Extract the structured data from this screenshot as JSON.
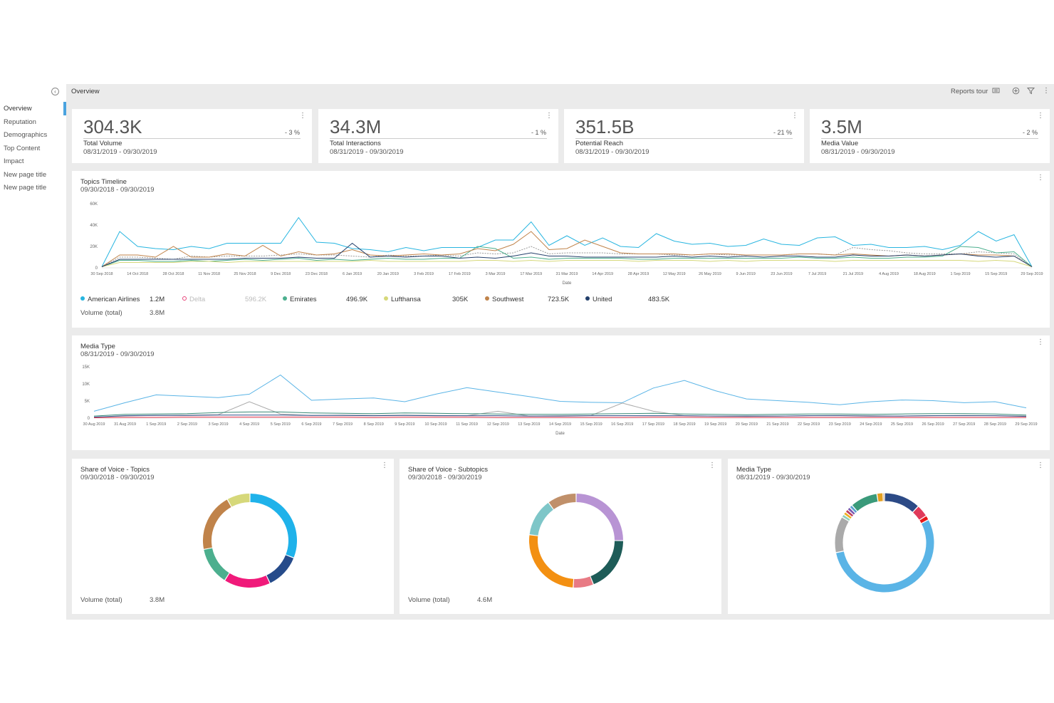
{
  "sidebar": {
    "collapse_icon": "chevron-left-circle-icon",
    "items": [
      {
        "label": "Overview",
        "active": true
      },
      {
        "label": "Reputation"
      },
      {
        "label": "Demographics"
      },
      {
        "label": "Top Content"
      },
      {
        "label": "Impact"
      },
      {
        "label": "New page title"
      },
      {
        "label": "New page title"
      }
    ]
  },
  "header": {
    "title": "Overview",
    "reports_tour": "Reports tour",
    "icons": [
      "reports-tour-icon",
      "add-circle-icon",
      "filter-icon",
      "more-vertical-icon"
    ]
  },
  "kpis": [
    {
      "value": "304.3K",
      "delta": "- 3 %",
      "label": "Total Volume",
      "date": "08/31/2019 - 09/30/2019"
    },
    {
      "value": "34.3M",
      "delta": "- 1 %",
      "label": "Total Interactions",
      "date": "08/31/2019 - 09/30/2019"
    },
    {
      "value": "351.5B",
      "delta": "- 21 %",
      "label": "Potential Reach",
      "date": "08/31/2019 - 09/30/2019"
    },
    {
      "value": "3.5M",
      "delta": "- 2 %",
      "label": "Media Value",
      "date": "08/31/2019 - 09/30/2019"
    }
  ],
  "topics_timeline": {
    "title": "Topics Timeline",
    "date": "09/30/2018 - 09/30/2019",
    "legend": [
      {
        "name": "American Airlines",
        "value": "1.2M",
        "color": "#27b5e0",
        "muted": false
      },
      {
        "name": "Delta",
        "value": "596.2K",
        "color": "#e8457a",
        "muted": true
      },
      {
        "name": "Emirates",
        "value": "496.9K",
        "color": "#4caf8e",
        "muted": false
      },
      {
        "name": "Lufthansa",
        "value": "305K",
        "color": "#d6d87a",
        "muted": false
      },
      {
        "name": "Southwest",
        "value": "723.5K",
        "color": "#c0834a",
        "muted": false
      },
      {
        "name": "United",
        "value": "483.5K",
        "color": "#233f6b",
        "muted": false
      }
    ],
    "volume_label": "Volume (total)",
    "volume_value": "3.8M"
  },
  "media_type_line": {
    "title": "Media Type",
    "date": "08/31/2019 - 09/30/2019"
  },
  "sov_topics": {
    "title": "Share of Voice - Topics",
    "date": "09/30/2018 - 09/30/2019",
    "volume_label": "Volume (total)",
    "volume_value": "3.8M"
  },
  "sov_subtopics": {
    "title": "Share of Voice - Subtopics",
    "date": "09/30/2018 - 09/30/2019",
    "volume_label": "Volume (total)",
    "volume_value": "4.6M"
  },
  "media_type_donut": {
    "title": "Media Type",
    "date": "08/31/2019 - 09/30/2019"
  },
  "chart_data": [
    {
      "type": "line",
      "ylabel": "",
      "xlabel": "Date",
      "yticks": [
        "0",
        "20K",
        "40K",
        "60K"
      ],
      "ylim": [
        0,
        60000
      ],
      "xticks": [
        "30 Sep 2018",
        "14 Oct 2018",
        "28 Oct 2018",
        "11 Nov 2018",
        "25 Nov 2018",
        "9 Dec 2018",
        "23 Dec 2018",
        "6 Jan 2019",
        "20 Jan 2019",
        "3 Feb 2019",
        "17 Feb 2019",
        "3 Mar 2019",
        "17 Mar 2019",
        "31 Mar 2019",
        "14 Apr 2019",
        "28 Apr 2019",
        "12 May 2019",
        "26 May 2019",
        "9 Jun 2019",
        "23 Jun 2019",
        "7 Jul 2019",
        "21 Jul 2019",
        "4 Aug 2019",
        "18 Aug 2019",
        "1 Sep 2019",
        "15 Sep 2019",
        "29 Sep 2019"
      ],
      "series": [
        {
          "name": "American Airlines",
          "color": "#27b5e0",
          "dashed": false,
          "values": [
            1000,
            34000,
            20000,
            18000,
            17000,
            20000,
            18000,
            23000,
            23000,
            23000,
            23000,
            47000,
            24000,
            23000,
            18000,
            17000,
            15000,
            19000,
            16000,
            19000,
            19000,
            19000,
            26000,
            26000,
            43000,
            21000,
            30000,
            21000,
            28000,
            20000,
            19000,
            32000,
            25000,
            22000,
            23000,
            20000,
            21000,
            27000,
            22000,
            21000,
            28000,
            29000,
            21000,
            22000,
            19000,
            19000,
            20000,
            17000,
            21000,
            34000,
            25000,
            31000,
            1000
          ]
        },
        {
          "name": "Delta",
          "color": "#999999",
          "dashed": true,
          "values": [
            1000,
            10000,
            10000,
            9000,
            8000,
            11000,
            10000,
            11000,
            11000,
            11000,
            12000,
            13000,
            12000,
            12000,
            11000,
            10000,
            12000,
            11000,
            11000,
            12000,
            11000,
            14000,
            13000,
            14000,
            20000,
            13000,
            14000,
            14000,
            14000,
            13000,
            13000,
            13000,
            12000,
            12000,
            13000,
            12000,
            12000,
            12000,
            12000,
            13000,
            13000,
            12000,
            19000,
            17000,
            16000,
            14000,
            13000,
            13000,
            13000,
            15000,
            14000,
            13000,
            1000
          ]
        },
        {
          "name": "Emirates",
          "color": "#4caf8e",
          "dashed": false,
          "values": [
            1000,
            7000,
            7000,
            6000,
            6000,
            7000,
            6000,
            7000,
            8000,
            7000,
            8000,
            9000,
            7000,
            8000,
            7000,
            8000,
            9000,
            8000,
            8000,
            9000,
            9000,
            20000,
            18000,
            9000,
            10000,
            8000,
            9000,
            9000,
            9000,
            9000,
            8000,
            8000,
            9000,
            9000,
            9000,
            9000,
            9000,
            9000,
            9000,
            10000,
            9000,
            9000,
            10000,
            9000,
            9000,
            10000,
            10000,
            11000,
            20000,
            19000,
            14000,
            15000,
            1000
          ]
        },
        {
          "name": "Lufthansa",
          "color": "#d6d87a",
          "dashed": false,
          "values": [
            1000,
            5000,
            5000,
            5000,
            5000,
            6000,
            6000,
            5000,
            6000,
            6000,
            6000,
            6000,
            6000,
            6000,
            6000,
            7000,
            6000,
            6000,
            6000,
            6000,
            6000,
            7000,
            7000,
            6000,
            7000,
            6000,
            7000,
            7000,
            7000,
            7000,
            6000,
            7000,
            7000,
            7000,
            6000,
            7000,
            6000,
            7000,
            7000,
            7000,
            7000,
            6000,
            7000,
            7000,
            7000,
            7000,
            7000,
            7000,
            7000,
            6000,
            7000,
            6000,
            1000
          ]
        },
        {
          "name": "Southwest",
          "color": "#c0834a",
          "dashed": false,
          "values": [
            1000,
            12000,
            12000,
            10000,
            20000,
            10000,
            10000,
            13000,
            11000,
            21000,
            11000,
            15000,
            12000,
            13000,
            17000,
            12000,
            11000,
            12000,
            13000,
            12000,
            13000,
            18000,
            16000,
            22000,
            34000,
            17000,
            18000,
            26000,
            20000,
            14000,
            13000,
            13000,
            13000,
            12000,
            13000,
            13000,
            12000,
            12000,
            12000,
            13000,
            13000,
            12000,
            13000,
            12000,
            11000,
            12000,
            11000,
            12000,
            13000,
            12000,
            12000,
            11000,
            1000
          ]
        },
        {
          "name": "United",
          "color": "#233f6b",
          "dashed": false,
          "values": [
            1000,
            8000,
            8000,
            8000,
            8000,
            8000,
            8000,
            8000,
            9000,
            9000,
            9000,
            10000,
            9000,
            9000,
            23000,
            10000,
            11000,
            10000,
            11000,
            11000,
            9000,
            10000,
            9000,
            11000,
            14000,
            11000,
            11000,
            10000,
            10000,
            10000,
            10000,
            10000,
            11000,
            10000,
            11000,
            10000,
            11000,
            10000,
            11000,
            11000,
            10000,
            10000,
            12000,
            11000,
            11000,
            12000,
            11000,
            12000,
            13000,
            11000,
            10000,
            11000,
            1000
          ]
        }
      ]
    },
    {
      "type": "line",
      "xlabel": "Date",
      "yticks": [
        "0",
        "5K",
        "10K",
        "15K"
      ],
      "ylim": [
        0,
        15000
      ],
      "xticks": [
        "30 Aug 2019",
        "31 Aug 2019",
        "1 Sep 2019",
        "2 Sep 2019",
        "3 Sep 2019",
        "4 Sep 2019",
        "5 Sep 2019",
        "6 Sep 2019",
        "7 Sep 2019",
        "8 Sep 2019",
        "9 Sep 2019",
        "10 Sep 2019",
        "11 Sep 2019",
        "12 Sep 2019",
        "13 Sep 2019",
        "14 Sep 2019",
        "15 Sep 2019",
        "16 Sep 2019",
        "17 Sep 2019",
        "18 Sep 2019",
        "19 Sep 2019",
        "20 Sep 2019",
        "21 Sep 2019",
        "22 Sep 2019",
        "23 Sep 2019",
        "24 Sep 2019",
        "25 Sep 2019",
        "26 Sep 2019",
        "27 Sep 2019",
        "28 Sep 2019",
        "29 Sep 2019"
      ],
      "series": [
        {
          "name": "",
          "color": "#5ab4e6",
          "values": [
            2000,
            4500,
            6800,
            6400,
            6000,
            7000,
            12600,
            5200,
            5600,
            5900,
            4800,
            7000,
            8900,
            7600,
            6300,
            4900,
            4600,
            4500,
            8800,
            11000,
            8000,
            5600,
            5100,
            4600,
            3900,
            4800,
            5300,
            5100,
            4500,
            4800,
            3000
          ]
        },
        {
          "name": "",
          "color": "#aaaaaa",
          "values": [
            300,
            600,
            800,
            900,
            1000,
            4800,
            1200,
            800,
            900,
            800,
            900,
            800,
            700,
            2000,
            600,
            700,
            800,
            4400,
            2000,
            700,
            600,
            500,
            600,
            700,
            800,
            700,
            600,
            700,
            800,
            700,
            600
          ]
        },
        {
          "name": "",
          "color": "#3a8a78",
          "values": [
            600,
            1100,
            1200,
            1300,
            1600,
            1800,
            1800,
            1500,
            1400,
            1300,
            1500,
            1400,
            1300,
            1200,
            1100,
            1100,
            1200,
            1300,
            1400,
            1200,
            1100,
            1000,
            1100,
            1200,
            1200,
            1100,
            1200,
            1300,
            1300,
            1200,
            900
          ]
        },
        {
          "name": "",
          "color": "#2c4a86",
          "values": [
            300,
            700,
            800,
            800,
            900,
            900,
            900,
            800,
            800,
            700,
            800,
            700,
            700,
            700,
            600,
            600,
            700,
            700,
            700,
            700,
            600,
            600,
            600,
            700,
            700,
            600,
            600,
            700,
            700,
            700,
            500
          ]
        },
        {
          "name": "",
          "color": "#e8334a",
          "values": [
            100,
            200,
            200,
            300,
            300,
            300,
            300,
            300,
            300,
            200,
            300,
            300,
            300,
            200,
            200,
            200,
            200,
            200,
            300,
            300,
            200,
            200,
            200,
            200,
            200,
            200,
            200,
            200,
            200,
            200,
            200
          ]
        }
      ]
    },
    {
      "type": "pie",
      "title": "Share of Voice - Topics",
      "slices": [
        {
          "value": 31,
          "color": "#1fb2ea"
        },
        {
          "value": 12,
          "color": "#264b8a"
        },
        {
          "value": 16,
          "color": "#f01a7a"
        },
        {
          "value": 13,
          "color": "#4caf8e"
        },
        {
          "value": 20,
          "color": "#c0834a"
        },
        {
          "value": 8,
          "color": "#d6d87a"
        }
      ]
    },
    {
      "type": "pie",
      "title": "Share of Voice - Subtopics",
      "slices": [
        {
          "value": 25,
          "color": "#b894d4"
        },
        {
          "value": 19,
          "color": "#1e5c58"
        },
        {
          "value": 7,
          "color": "#e87a84"
        },
        {
          "value": 26,
          "color": "#f39012"
        },
        {
          "value": 13,
          "color": "#7ec6c8"
        },
        {
          "value": 10,
          "color": "#c0906a"
        }
      ]
    },
    {
      "type": "pie",
      "title": "Media Type",
      "slices": [
        {
          "value": 12,
          "color": "#2c4a86"
        },
        {
          "value": 4,
          "color": "#e03a5a"
        },
        {
          "value": 1.5,
          "color": "#e81818"
        },
        {
          "value": 55,
          "color": "#5ab4e6"
        },
        {
          "value": 12,
          "color": "#aaaaaa"
        },
        {
          "value": 1,
          "color": "#8fd1b8"
        },
        {
          "value": 1,
          "color": "#f0b020"
        },
        {
          "value": 1,
          "color": "#c04060"
        },
        {
          "value": 1,
          "color": "#7a5ab0"
        },
        {
          "value": 1,
          "color": "#5aa0d0"
        },
        {
          "value": 9,
          "color": "#3a9a7a"
        },
        {
          "value": 2,
          "color": "#e5a020"
        },
        {
          "value": 0.5,
          "color": "#c0834a"
        }
      ]
    }
  ]
}
